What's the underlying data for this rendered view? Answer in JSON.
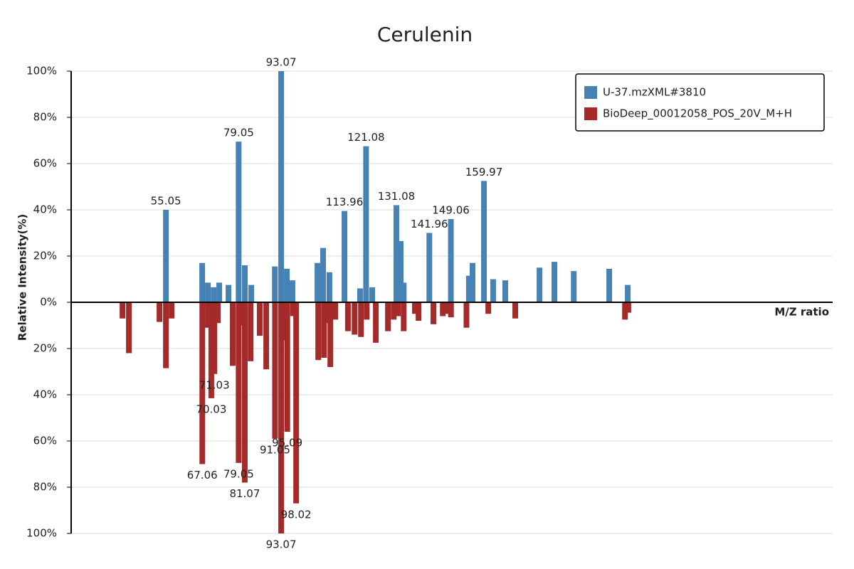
{
  "chart_data": {
    "type": "mirror-bar",
    "title": "Cerulenin",
    "y_label": "Relative Intensity(%)",
    "x_label": "M/Z ratio",
    "xlim": [
      23.8,
      275
    ],
    "ylim": [
      -100,
      100
    ],
    "yticks": [
      {
        "value": 100,
        "label": "100%"
      },
      {
        "value": 80,
        "label": "80%"
      },
      {
        "value": 60,
        "label": "60%"
      },
      {
        "value": 40,
        "label": "40%"
      },
      {
        "value": 20,
        "label": "20%"
      },
      {
        "value": 0,
        "label": "0%"
      },
      {
        "value": -20,
        "label": "20%"
      },
      {
        "value": -40,
        "label": "40%"
      },
      {
        "value": -60,
        "label": "60%"
      },
      {
        "value": -80,
        "label": "80%"
      },
      {
        "value": -100,
        "label": "100%"
      }
    ],
    "grid": true,
    "legend": "top-right",
    "series": [
      {
        "name": "U-37.mzXML#3810",
        "color": "#4682b4",
        "x": [
          55.05,
          67.02,
          68.9,
          70.8,
          72.65,
          75.7,
          79.05,
          81.1,
          83.2,
          91.0,
          93.07,
          94.95,
          96.8,
          105.05,
          106.9,
          109.0,
          113.96,
          119.1,
          121.08,
          123.1,
          131.08,
          132.5,
          133.5,
          141.96,
          149.06,
          155.0,
          156.2,
          159.97,
          163.0,
          167.0,
          178.3,
          183.2,
          189.6,
          201.3,
          207.4
        ],
        "values": [
          40,
          17,
          8.5,
          6.5,
          8.5,
          7.5,
          69.5,
          16,
          7.5,
          15.5,
          100,
          14.5,
          9.5,
          17,
          23.5,
          13,
          39.5,
          6,
          67.5,
          6.5,
          42,
          26.5,
          8.5,
          30,
          36,
          11.5,
          17,
          52.5,
          10,
          9.5,
          15,
          17.5,
          13.5,
          14.5,
          7.5
        ],
        "peak_labels": [
          "55.05",
          "79.05",
          "93.07",
          "113.96",
          "121.08",
          "131.08",
          "141.96",
          "149.06",
          "159.97"
        ]
      },
      {
        "name": "BioDeep_00012058_POS_20V_M+H",
        "color": "#a52a2a",
        "x": [
          40.73,
          42.84,
          52.94,
          55.05,
          56.93,
          67.06,
          68.9,
          70.03,
          71.03,
          72.2,
          77.1,
          79.05,
          80.2,
          81.07,
          83.0,
          86.0,
          88.15,
          91.05,
          93.07,
          94.0,
          95.09,
          97.0,
          98.02,
          105.3,
          107.2,
          108.1,
          109.3,
          110.9,
          115.1,
          117.3,
          119.4,
          121.3,
          124.3,
          128.3,
          130.2,
          131.6,
          133.5,
          137.2,
          138.4,
          143.3,
          146.4,
          148.0,
          149.1,
          154.2,
          161.4,
          170.3,
          206.5,
          207.6
        ],
        "values": [
          -7,
          -22,
          -8.5,
          -28.5,
          -7,
          -70,
          -11,
          -41.5,
          -31,
          -9,
          -27.5,
          -69.5,
          -10,
          -78,
          -25.5,
          -14.5,
          -29,
          -59,
          -100,
          -16.5,
          -56,
          -6,
          -87,
          -25,
          -24,
          -9,
          -28,
          -7.5,
          -12.5,
          -14,
          -15,
          -7.5,
          -17.5,
          -12.5,
          -7.5,
          -6,
          -12.5,
          -5,
          -8,
          -9.5,
          -6,
          -5,
          -6.5,
          -11,
          -5,
          -7,
          -7.5,
          -4.5
        ],
        "peak_labels": [
          "67.06",
          "70.03",
          "71.03",
          "79.05",
          "81.07",
          "91.05",
          "93.07",
          "95.09",
          "98.02"
        ]
      }
    ]
  }
}
